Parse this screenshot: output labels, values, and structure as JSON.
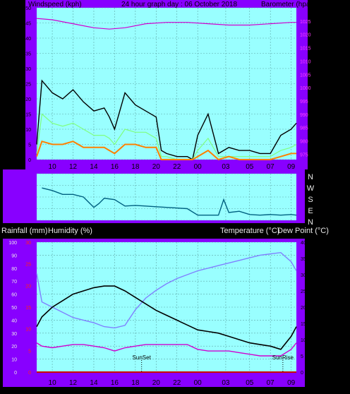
{
  "header": {
    "left_label": "Windspeed (kph)",
    "center_label": "24 hour graph day : 06 October 2018",
    "right_label": "Barometer (hpa)",
    "bottom_left_label": "Rainfall (mm)",
    "bottom_left_label2": "Humidity (%)",
    "bottom_right_label": "Temperature (°C)",
    "bottom_right_label2": "Dew Point (°C)"
  },
  "colors": {
    "background": "#000000",
    "frame": "#8800ff",
    "plot": "#99ffff",
    "grid": "#5fa8a8",
    "wind_gust": "#000000",
    "wind_avg": "#80ff80",
    "wind_low": "#ff8000",
    "barometer": "#d000d0",
    "direction": "#006080",
    "temperature": "#000000",
    "humidity": "#8080ff",
    "dewpoint": "#d000d0",
    "rainfall": "#cc0000"
  },
  "chart_data": [
    {
      "type": "line",
      "title": "24 hour graph day : 06 October 2018",
      "x_ticks": [
        "10",
        "12",
        "14",
        "16",
        "18",
        "20",
        "22",
        "00",
        "03",
        "05",
        "07",
        "09"
      ],
      "y_left_label": "Windspeed (kph)",
      "y_left_ticks": [
        0,
        5,
        10,
        15,
        20,
        25,
        30,
        35,
        40,
        45,
        50
      ],
      "y_left_lim": [
        0,
        50
      ],
      "y_right_label": "Barometer (hpa)",
      "y_right_ticks": [
        975,
        980,
        985,
        990,
        995,
        1000,
        1005,
        1010,
        1015,
        1020,
        1025
      ],
      "y_right_lim": [
        973,
        1030
      ],
      "grid": true,
      "series": [
        {
          "key": "gust",
          "x": [
            8.5,
            9,
            10,
            11,
            12,
            13,
            14,
            15,
            15.5,
            16,
            17,
            18,
            19,
            20,
            20.5,
            21,
            22,
            23,
            23.5,
            24,
            25,
            26,
            27,
            28,
            29,
            30,
            31,
            32,
            33,
            33.5
          ],
          "y": [
            5,
            26,
            22,
            20,
            23,
            19,
            16,
            17,
            14,
            10,
            22,
            18,
            16,
            14,
            3,
            2,
            1,
            1,
            0,
            8,
            15,
            2,
            4,
            3,
            3,
            2,
            2,
            8,
            10,
            12
          ]
        },
        {
          "key": "avg",
          "x": [
            8.5,
            9,
            10,
            11,
            12,
            13,
            14,
            15,
            15.5,
            16,
            17,
            18,
            19,
            20,
            20.5,
            21,
            22,
            23,
            23.5,
            24,
            25,
            26,
            27,
            28,
            29,
            30,
            31,
            32,
            33,
            33.5
          ],
          "y": [
            2,
            15,
            12,
            11,
            12,
            10,
            8,
            8,
            7,
            5,
            10,
            9,
            9,
            7,
            1,
            1,
            0,
            0,
            0,
            3,
            7,
            1,
            1,
            1,
            1,
            1,
            1,
            3,
            4,
            5
          ]
        },
        {
          "key": "low",
          "x": [
            8.5,
            9,
            10,
            11,
            12,
            13,
            14,
            15,
            15.5,
            16,
            17,
            18,
            19,
            20,
            20.5,
            21,
            22,
            23,
            23.5,
            24,
            25,
            26,
            27,
            28,
            29,
            30,
            31,
            32,
            33,
            33.5
          ],
          "y": [
            1,
            6,
            5,
            5,
            6,
            4,
            4,
            4,
            3,
            2,
            5,
            5,
            4,
            4,
            0,
            0,
            0,
            0,
            0,
            1,
            3,
            0,
            1,
            0,
            0,
            0,
            0,
            1,
            2,
            2
          ]
        },
        {
          "key": "barometer",
          "x": [
            8.5,
            10,
            12,
            14,
            15.5,
            17,
            19,
            21,
            23,
            25,
            27,
            29,
            31,
            33,
            33.5
          ],
          "y": [
            1026,
            1025.5,
            1024,
            1022.5,
            1022,
            1022.5,
            1024,
            1024.5,
            1024.5,
            1024,
            1023.5,
            1023.5,
            1024,
            1024.5,
            1024.5
          ]
        }
      ]
    },
    {
      "type": "line",
      "title": "Wind direction",
      "y_right_ticks": [
        "N",
        "W",
        "S",
        "E",
        "N"
      ],
      "y_lim": [
        0,
        360
      ],
      "series": [
        {
          "key": "direction",
          "x": [
            9,
            10,
            11,
            12,
            13,
            14,
            14.5,
            15,
            16,
            17,
            18,
            19,
            20,
            21,
            22,
            23,
            24,
            24.5,
            25,
            26,
            26.5,
            27,
            28,
            29,
            30,
            31,
            32,
            33,
            33.5
          ],
          "y": [
            250,
            230,
            200,
            200,
            180,
            100,
            130,
            170,
            160,
            110,
            115,
            110,
            105,
            100,
            95,
            90,
            40,
            40,
            40,
            40,
            160,
            60,
            70,
            45,
            40,
            45,
            40,
            45,
            40
          ]
        }
      ]
    },
    {
      "type": "line",
      "x_ticks": [
        "10",
        "12",
        "14",
        "16",
        "18",
        "20",
        "22",
        "00",
        "03",
        "05",
        "07",
        "09"
      ],
      "y_left_label": "Rainfall (mm)  Humidity (%)",
      "y_left_ticks_humidity": [
        0,
        10,
        20,
        30,
        40,
        50,
        60,
        70,
        80,
        90,
        100
      ],
      "y_left_ticks_rain": [
        0,
        5,
        10,
        15,
        20,
        25,
        30
      ],
      "y_right_label": "Temperature (°C)Dew Point (°C)",
      "y_right_ticks": [
        0,
        5,
        10,
        15,
        20,
        25,
        30,
        35,
        40
      ],
      "grid": true,
      "annotations": [
        "SunSet",
        "SunRise"
      ],
      "series": [
        {
          "key": "temperature",
          "x": [
            8.5,
            9,
            10,
            11,
            12,
            13,
            14,
            15,
            16,
            17,
            18,
            19,
            20,
            21,
            22,
            23,
            24,
            25,
            26,
            27,
            28,
            29,
            30,
            31,
            32,
            33,
            33.5
          ],
          "y": [
            14,
            17,
            20,
            22,
            24,
            25,
            26,
            26.5,
            26.5,
            25,
            23,
            21,
            19,
            17.5,
            16,
            14.5,
            13,
            12.5,
            12,
            11,
            10,
            9,
            8.5,
            8,
            7,
            11,
            14
          ]
        },
        {
          "key": "humidity",
          "x": [
            8.5,
            9,
            10,
            11,
            12,
            13,
            14,
            15,
            16,
            17,
            18,
            19,
            20,
            21,
            22,
            23,
            24,
            25,
            26,
            27,
            28,
            29,
            30,
            31,
            32,
            33,
            33.5
          ],
          "y": [
            76,
            54,
            50,
            46,
            42,
            40,
            38,
            35,
            34,
            36,
            48,
            57,
            63,
            68,
            72,
            75,
            78,
            80,
            82,
            84,
            86,
            88,
            90,
            91,
            92,
            85,
            78
          ]
        },
        {
          "key": "dewpoint",
          "x": [
            8.5,
            9,
            10,
            11,
            12,
            13,
            14,
            15,
            16,
            17,
            18,
            19,
            20,
            21,
            22,
            23,
            24,
            25,
            26,
            27,
            28,
            29,
            30,
            31,
            32,
            33,
            33.5
          ],
          "y": [
            9,
            8,
            7.5,
            8,
            8.5,
            8.5,
            8,
            7.5,
            6.5,
            7.5,
            8,
            8.5,
            8.5,
            8.5,
            8.5,
            8.5,
            7,
            6.5,
            6.5,
            6.5,
            6,
            5.5,
            5,
            5,
            5,
            7,
            9
          ]
        },
        {
          "key": "rainfall",
          "x": [
            8.5,
            33.5
          ],
          "y": [
            0,
            0
          ]
        }
      ]
    }
  ]
}
